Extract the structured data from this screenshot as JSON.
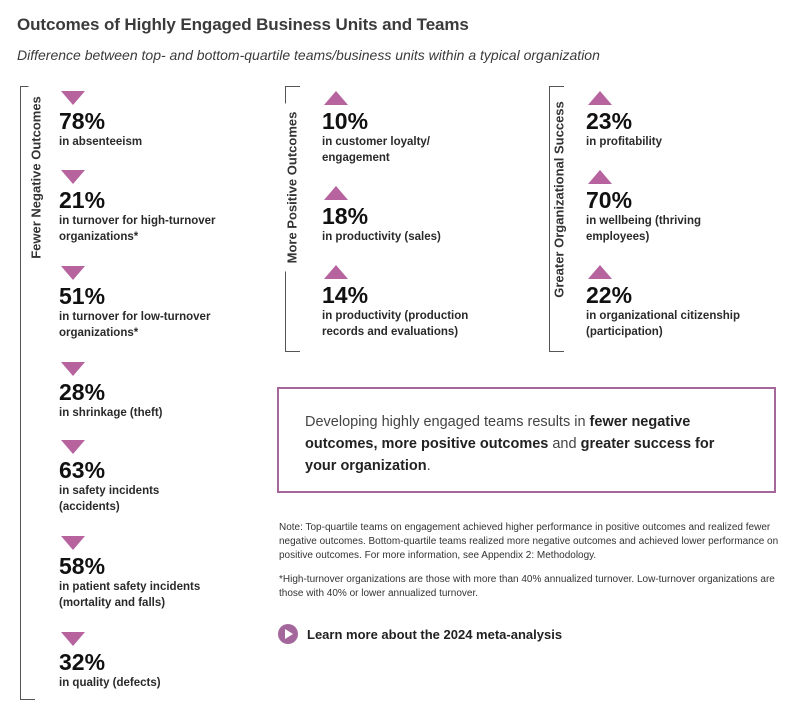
{
  "title": "Outcomes of Highly Engaged Business Units and Teams",
  "subtitle": "Difference between top- and bottom-quartile teams/business units within a typical organization",
  "colors": {
    "accent": "#b7639e",
    "border": "#a4679b"
  },
  "groups": {
    "negative": {
      "label": "Fewer Negative Outcomes",
      "direction": "down",
      "items": [
        {
          "pct": "78%",
          "desc": "in absenteeism"
        },
        {
          "pct": "21%",
          "desc": "in turnover for high-turnover organizations*"
        },
        {
          "pct": "51%",
          "desc": "in turnover for low-turnover organizations*"
        },
        {
          "pct": "28%",
          "desc": "in shrinkage (theft)"
        },
        {
          "pct": "63%",
          "desc": "in safety incidents (accidents)"
        },
        {
          "pct": "58%",
          "desc": "in patient safety incidents (mortality and falls)"
        },
        {
          "pct": "32%",
          "desc": "in quality (defects)"
        }
      ]
    },
    "positive": {
      "label": "More Positive Outcomes",
      "direction": "up",
      "items": [
        {
          "pct": "10%",
          "desc": "in customer loyalty/ engagement"
        },
        {
          "pct": "18%",
          "desc": "in productivity (sales)"
        },
        {
          "pct": "14%",
          "desc": "in productivity (production records and evaluations)"
        }
      ]
    },
    "success": {
      "label": "Greater Organizational Success",
      "direction": "up",
      "items": [
        {
          "pct": "23%",
          "desc": "in profitability"
        },
        {
          "pct": "70%",
          "desc": "in wellbeing (thriving employees)"
        },
        {
          "pct": "22%",
          "desc": "in organizational citizenship (participation)"
        }
      ]
    }
  },
  "callout": {
    "p1": "Developing highly engaged teams results in ",
    "b1": "fewer negative outcomes, more positive outcomes",
    "p2": " and ",
    "b2": "greater success for your organization",
    "p3": "."
  },
  "note1": "Note: Top-quartile teams on engagement achieved higher performance in positive outcomes and realized fewer negative outcomes. Bottom-quartile teams realized more negative outcomes and achieved lower performance on positive outcomes. For more information, see Appendix 2: Methodology.",
  "note2": "*High-turnover organizations are those with more than 40% annualized turnover. Low-turnover organizations are those with 40% or lower annualized turnover.",
  "learn_more": "Learn more about the 2024 meta-analysis"
}
